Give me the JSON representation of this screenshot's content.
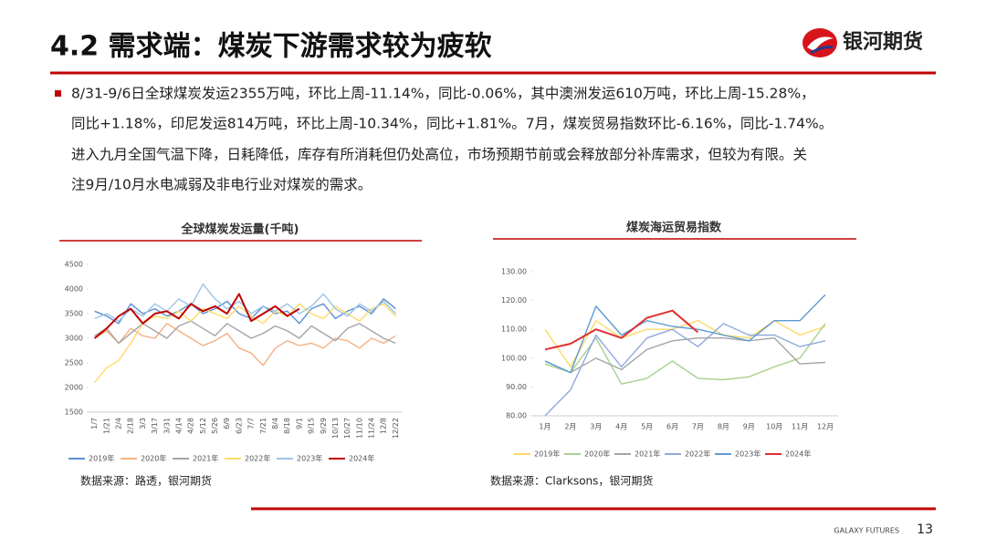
{
  "header": {
    "title": "4.2 需求端：煤炭下游需求较为疲软",
    "logo": "银河期货"
  },
  "bullet": {
    "lines": [
      "8/31-9/6日全球煤炭发运2355万吨，环比上周-11.14%，同比-0.06%，其中澳洲发运610万吨，环比上周-15.28%，",
      "同比+1.18%，印尼发运814万吨，环比上周-10.34%，同比+1.81%。7月，煤炭贸易指数环比-6.16%，同比-1.74%。",
      "进入九月全国气温下降，日耗降低，库存有所消耗但仍处高位，市场预期节前或会释放部分补库需求，但较为有限。关",
      "注9月/10月水电减弱及非电行业对煤炭的需求。"
    ]
  },
  "chart_data": [
    {
      "type": "line",
      "title": "全球煤炭发运量(千吨)",
      "source": "数据来源：路透，银河期货",
      "categories": [
        "1/7",
        "1/21",
        "2/4",
        "2/18",
        "3/3",
        "3/17",
        "3/31",
        "4/14",
        "4/28",
        "5/12",
        "5/26",
        "6/9",
        "6/23",
        "7/7",
        "7/21",
        "8/4",
        "8/18",
        "9/1",
        "9/15",
        "9/29",
        "10/13",
        "10/27",
        "11/10",
        "11/24",
        "12/8",
        "12/22"
      ],
      "ylim": [
        1500,
        4500
      ],
      "yticks": [
        1500,
        2000,
        2500,
        3000,
        3500,
        4000,
        4500
      ],
      "legend": "bottom",
      "series": [
        {
          "name": "2019年",
          "color": "#5b8fcf",
          "values": [
            3550,
            3450,
            3300,
            3700,
            3500,
            3600,
            3450,
            3550,
            3700,
            3500,
            3600,
            3750,
            3500,
            3400,
            3650,
            3500,
            3550,
            3300,
            3600,
            3700,
            3400,
            3550,
            3650,
            3500,
            3800,
            3600
          ]
        },
        {
          "name": "2020年",
          "color": "#f4b183",
          "values": [
            3000,
            3150,
            2900,
            3200,
            3050,
            3000,
            3300,
            3150,
            3000,
            2850,
            2950,
            3100,
            2800,
            2700,
            2450,
            2800,
            2950,
            2850,
            2900,
            2800,
            3000,
            2950,
            2800,
            3000,
            2900,
            3050
          ]
        },
        {
          "name": "2021年",
          "color": "#a5a5a5",
          "values": [
            3050,
            3200,
            2900,
            3100,
            3300,
            3150,
            3000,
            3250,
            3350,
            3200,
            3050,
            3300,
            3150,
            3000,
            3100,
            3250,
            3150,
            3000,
            3250,
            3100,
            2950,
            3200,
            3300,
            3150,
            3000,
            2900
          ]
        },
        {
          "name": "2022年",
          "color": "#ffd966",
          "values": [
            2100,
            2400,
            2550,
            2900,
            3300,
            3450,
            3400,
            3550,
            3350,
            3600,
            3500,
            3400,
            3650,
            3450,
            3300,
            3550,
            3450,
            3700,
            3500,
            3400,
            3650,
            3500,
            3350,
            3600,
            3700,
            3450
          ]
        },
        {
          "name": "2023年",
          "color": "#9dc3e6",
          "values": [
            3400,
            3500,
            3350,
            3600,
            3450,
            3700,
            3550,
            3800,
            3650,
            4100,
            3800,
            3600,
            3750,
            3500,
            3650,
            3550,
            3700,
            3500,
            3650,
            3900,
            3600,
            3450,
            3700,
            3550,
            3750,
            3500
          ]
        },
        {
          "name": "2024年",
          "color": "#c00000",
          "values": [
            3000,
            3200,
            3450,
            3600,
            3300,
            3500,
            3550,
            3400,
            3700,
            3550,
            3650,
            3500,
            3900,
            3350,
            3500,
            3650,
            3450,
            3600,
            null,
            null,
            null,
            null,
            null,
            null,
            null,
            null
          ]
        }
      ]
    },
    {
      "type": "line",
      "title": "煤炭海运贸易指数",
      "source": "数据来源：Clarksons，银河期货",
      "categories": [
        "1月",
        "2月",
        "3月",
        "4月",
        "5月",
        "6月",
        "7月",
        "8月",
        "9月",
        "10月",
        "11月",
        "12月"
      ],
      "ylim": [
        80,
        130
      ],
      "yticks": [
        {
          "value": 80,
          "label": "80.00"
        },
        {
          "value": 90,
          "label": "90.00"
        },
        {
          "value": 100,
          "label": "100.00"
        },
        {
          "value": 110,
          "label": "110.00"
        },
        {
          "value": 120,
          "label": "120.00"
        },
        {
          "value": 130,
          "label": "130.00"
        }
      ],
      "legend": "bottom",
      "series": [
        {
          "name": "2019年",
          "color": "#ffd966",
          "values": [
            110,
            97,
            113,
            107,
            110,
            110,
            113,
            108,
            107,
            113,
            108,
            111
          ]
        },
        {
          "name": "2020年",
          "color": "#a9d18e",
          "values": [
            98,
            95,
            107,
            91,
            93,
            99,
            93,
            92.5,
            93.5,
            97,
            100,
            112
          ]
        },
        {
          "name": "2021年",
          "color": "#a5a5a5",
          "values": [
            99,
            95,
            100,
            96,
            103,
            106,
            107,
            107,
            106,
            107,
            98,
            98.5
          ]
        },
        {
          "name": "2022年",
          "color": "#8faadc",
          "values": [
            80,
            89,
            108,
            97,
            107,
            110,
            104,
            112,
            108,
            108,
            104,
            106
          ]
        },
        {
          "name": "2023年",
          "color": "#5b9bd5",
          "values": [
            99,
            95,
            118,
            108,
            113,
            111,
            110,
            108,
            106,
            113,
            113,
            122
          ]
        },
        {
          "name": "2024年",
          "color": "#e03030",
          "values": [
            103,
            105,
            110,
            107,
            114,
            116.5,
            109,
            null,
            null,
            null,
            null,
            null
          ]
        }
      ]
    }
  ],
  "footer": {
    "brand": "GALAXY FUTURES",
    "page": "13"
  }
}
